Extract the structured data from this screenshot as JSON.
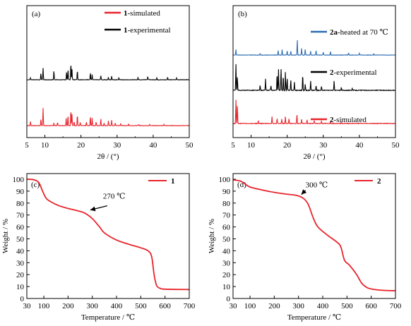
{
  "chart_data": [
    {
      "type": "line",
      "panel_label": "(a)",
      "xlabel": "2θ / (°)",
      "xlim": [
        5,
        50
      ],
      "xticks": [
        5,
        10,
        20,
        30,
        40,
        50
      ],
      "ylabel": "",
      "legend_position": "top-right",
      "series": [
        {
          "name": "1-simulated",
          "name_bold": "1",
          "name_rest": "-simulated",
          "color": "#e8242b",
          "peaks": [
            [
              6.0,
              0.22
            ],
            [
              8.9,
              0.35
            ],
            [
              9.5,
              0.95
            ],
            [
              12.5,
              0.14
            ],
            [
              13.5,
              0.18
            ],
            [
              15.9,
              0.42
            ],
            [
              16.4,
              0.55
            ],
            [
              17.2,
              0.88
            ],
            [
              17.5,
              0.62
            ],
            [
              18.1,
              0.22
            ],
            [
              19.0,
              0.6
            ],
            [
              19.8,
              0.18
            ],
            [
              21.5,
              0.2
            ],
            [
              22.6,
              0.5
            ],
            [
              23.1,
              0.42
            ],
            [
              24.2,
              0.2
            ],
            [
              25.5,
              0.38
            ],
            [
              26.4,
              0.15
            ],
            [
              27.6,
              0.26
            ],
            [
              28.5,
              0.3
            ],
            [
              29.5,
              0.15
            ],
            [
              31.0,
              0.12
            ],
            [
              33.2,
              0.1
            ],
            [
              36.0,
              0.08
            ],
            [
              39.0,
              0.07
            ],
            [
              43.0,
              0.06
            ]
          ]
        },
        {
          "name": "1-experimental",
          "name_bold": "1",
          "name_rest": "-experimental",
          "color": "#000000",
          "peaks": [
            [
              6.0,
              0.12
            ],
            [
              8.9,
              0.4
            ],
            [
              9.5,
              0.7
            ],
            [
              12.5,
              0.55
            ],
            [
              16.0,
              0.45
            ],
            [
              16.4,
              0.6
            ],
            [
              17.2,
              1.0
            ],
            [
              17.5,
              0.62
            ],
            [
              19.0,
              0.55
            ],
            [
              22.6,
              0.42
            ],
            [
              23.1,
              0.3
            ],
            [
              25.5,
              0.25
            ],
            [
              27.6,
              0.15
            ],
            [
              28.5,
              0.22
            ],
            [
              30.5,
              0.12
            ],
            [
              35.8,
              0.12
            ],
            [
              38.5,
              0.18
            ],
            [
              41.0,
              0.1
            ],
            [
              44.0,
              0.15
            ],
            [
              46.5,
              0.1
            ]
          ]
        }
      ]
    },
    {
      "type": "line",
      "panel_label": "(b)",
      "xlabel": "2θ / (°)",
      "xlim": [
        5,
        50
      ],
      "xticks": [
        5,
        10,
        20,
        30,
        40,
        50
      ],
      "ylabel": "",
      "legend_position": "inline",
      "series": [
        {
          "name": "2a-heated at 70 ℃",
          "name_bold": "2a",
          "name_rest": "-heated at 70 ℃",
          "color": "#2b6cb4",
          "peaks": [
            [
              5.8,
              0.35
            ],
            [
              12.5,
              0.1
            ],
            [
              17.5,
              0.3
            ],
            [
              18.6,
              0.35
            ],
            [
              20.0,
              0.28
            ],
            [
              21.0,
              0.25
            ],
            [
              22.8,
              1.0
            ],
            [
              24.0,
              0.45
            ],
            [
              25.0,
              0.38
            ],
            [
              26.5,
              0.25
            ],
            [
              28.0,
              0.3
            ],
            [
              30.0,
              0.18
            ],
            [
              32.0,
              0.22
            ],
            [
              37.0,
              0.15
            ],
            [
              40.0,
              0.12
            ],
            [
              44.0,
              0.1
            ]
          ]
        },
        {
          "name": "2-experimental",
          "name_bold": "2",
          "name_rest": "-experimental",
          "color": "#000000",
          "peaks": [
            [
              5.8,
              1.0
            ],
            [
              6.2,
              0.55
            ],
            [
              12.5,
              0.2
            ],
            [
              14.0,
              0.42
            ],
            [
              15.5,
              0.18
            ],
            [
              17.2,
              0.65
            ],
            [
              17.6,
              0.78
            ],
            [
              18.3,
              0.82
            ],
            [
              18.9,
              0.55
            ],
            [
              19.5,
              0.7
            ],
            [
              20.0,
              0.48
            ],
            [
              21.0,
              0.4
            ],
            [
              22.0,
              0.3
            ],
            [
              24.3,
              0.6
            ],
            [
              25.0,
              0.25
            ],
            [
              26.5,
              0.35
            ],
            [
              28.0,
              0.18
            ],
            [
              29.5,
              0.15
            ],
            [
              33.0,
              0.35
            ],
            [
              35.0,
              0.1
            ],
            [
              38.0,
              0.08
            ]
          ]
        },
        {
          "name": "2-simulated",
          "name_bold": "2",
          "name_rest": "-simulated",
          "color": "#e8242b",
          "peaks": [
            [
              5.8,
              1.0
            ],
            [
              6.2,
              0.8
            ],
            [
              12.0,
              0.1
            ],
            [
              15.8,
              0.28
            ],
            [
              17.2,
              0.22
            ],
            [
              18.5,
              0.18
            ],
            [
              19.5,
              0.28
            ],
            [
              20.5,
              0.2
            ],
            [
              22.7,
              0.38
            ],
            [
              24.0,
              0.18
            ],
            [
              25.5,
              0.15
            ],
            [
              27.5,
              0.12
            ],
            [
              29.5,
              0.1
            ],
            [
              32.0,
              0.08
            ],
            [
              35.0,
              0.06
            ]
          ]
        }
      ]
    },
    {
      "type": "line",
      "panel_label": "(c)",
      "xlabel": "Temperature / ℃",
      "ylabel": "Weight / %",
      "xlim": [
        30,
        700
      ],
      "ylim": [
        0,
        100
      ],
      "xticks": [
        30,
        100,
        200,
        300,
        400,
        500,
        600,
        700
      ],
      "yticks": [
        0,
        10,
        20,
        30,
        40,
        50,
        60,
        70,
        80,
        90,
        100
      ],
      "legend_position": "top-right",
      "annotation": {
        "text": "270 ℃",
        "x": 280,
        "y": 73
      },
      "series": [
        {
          "name": "1",
          "color": "#e8242b",
          "points": [
            [
              30,
              100
            ],
            [
              60,
              99.5
            ],
            [
              80,
              97
            ],
            [
              95,
              90
            ],
            [
              110,
              84
            ],
            [
              130,
              81
            ],
            [
              160,
              78
            ],
            [
              200,
              75.5
            ],
            [
              240,
              73.5
            ],
            [
              270,
              71.5
            ],
            [
              300,
              67
            ],
            [
              330,
              60
            ],
            [
              350,
              55
            ],
            [
              400,
              49
            ],
            [
              450,
              45.5
            ],
            [
              500,
              42.5
            ],
            [
              530,
              40
            ],
            [
              545,
              35
            ],
            [
              555,
              20
            ],
            [
              565,
              11
            ],
            [
              580,
              8.5
            ],
            [
              600,
              7.8
            ],
            [
              700,
              7.5
            ]
          ]
        }
      ]
    },
    {
      "type": "line",
      "panel_label": "(d)",
      "xlabel": "Temperature / ℃",
      "ylabel": "Weight / %",
      "xlim": [
        30,
        700
      ],
      "ylim": [
        0,
        100
      ],
      "xticks": [
        30,
        100,
        200,
        300,
        400,
        500,
        600,
        700
      ],
      "yticks": [
        0,
        10,
        20,
        30,
        40,
        50,
        60,
        70,
        80,
        90,
        100
      ],
      "legend_position": "top-right",
      "annotation": {
        "text": "300 ℃",
        "x": 300,
        "y": 86
      },
      "series": [
        {
          "name": "2",
          "color": "#e8242b",
          "points": [
            [
              30,
              99.5
            ],
            [
              60,
              98.5
            ],
            [
              80,
              96
            ],
            [
              100,
              93.5
            ],
            [
              150,
              91
            ],
            [
              200,
              89
            ],
            [
              250,
              87.5
            ],
            [
              290,
              86.5
            ],
            [
              320,
              84
            ],
            [
              340,
              79
            ],
            [
              360,
              68
            ],
            [
              380,
              60
            ],
            [
              420,
              53
            ],
            [
              460,
              47
            ],
            [
              475,
              43
            ],
            [
              490,
              32
            ],
            [
              510,
              28
            ],
            [
              540,
              20
            ],
            [
              560,
              13
            ],
            [
              580,
              9.5
            ],
            [
              600,
              8
            ],
            [
              650,
              6.8
            ],
            [
              700,
              6.5
            ]
          ]
        }
      ]
    }
  ]
}
